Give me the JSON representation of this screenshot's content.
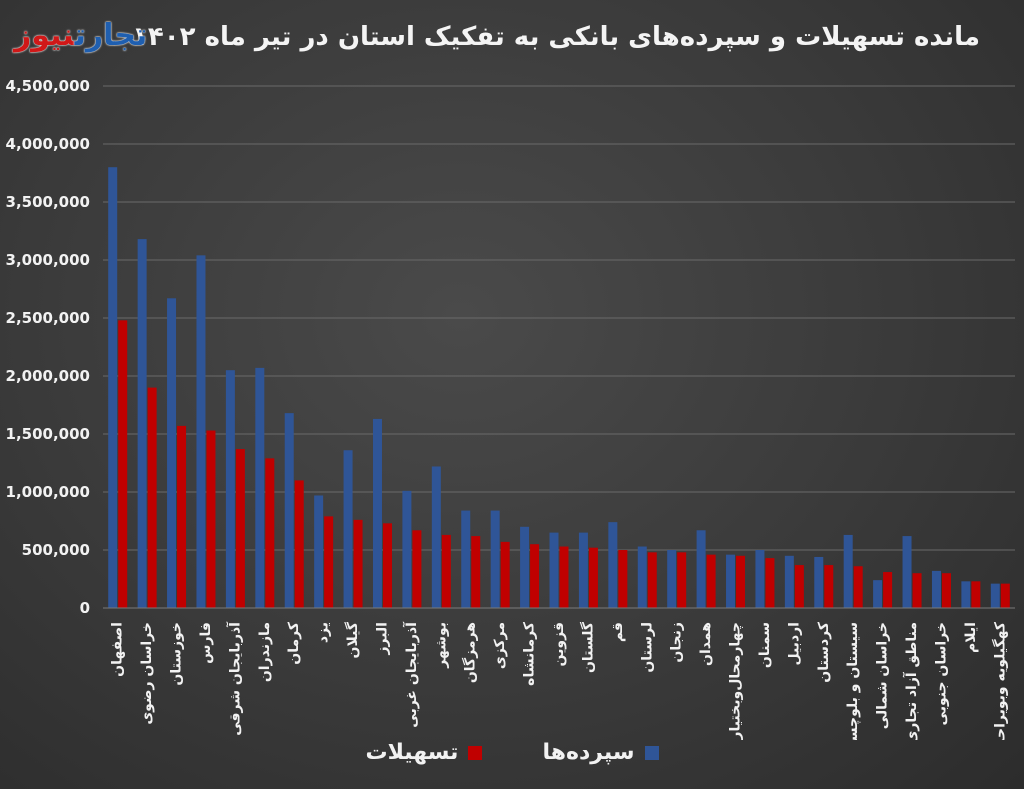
{
  "header": {
    "title": "مانده تسهیلات و سپرده‌های بانکی به تفکیک استان در تیر ماه ۱۴۰۲",
    "logo_part1": "تجارت",
    "logo_part2": "نیوز"
  },
  "chart_data": {
    "type": "bar",
    "categories": [
      "اصفهان",
      "خراسان رضوی",
      "خوزستان",
      "فارس",
      "آذربایجان شرقی",
      "مازندران",
      "کرمان",
      "یزد",
      "گیلان",
      "البرز",
      "آذربایجان غربی",
      "بوشهر",
      "هرمزگان",
      "مرکزی",
      "کرمانشاه",
      "قزوین",
      "گلستان",
      "قم",
      "لرستان",
      "زنجان",
      "همدان",
      "چهارمحال‌وبختیاری",
      "سمنان",
      "اردبیل",
      "کردستان",
      "سیستان و بلوچستان",
      "خراسان شمالی",
      "مناطق آزاد تجاری",
      "خراسان جنوبی",
      "ایلام",
      "کهگیلویه وبویراحمد"
    ],
    "series": [
      {
        "name": "سپرده‌ها",
        "color": "#2f5597",
        "values": [
          3800000,
          3180000,
          2670000,
          3040000,
          2050000,
          2070000,
          1680000,
          970000,
          1360000,
          1630000,
          1010000,
          1220000,
          840000,
          840000,
          700000,
          650000,
          650000,
          740000,
          530000,
          500000,
          670000,
          460000,
          500000,
          450000,
          440000,
          630000,
          240000,
          620000,
          320000,
          230000,
          210000
        ]
      },
      {
        "name": "تسهیلات",
        "color": "#c00000",
        "values": [
          2480000,
          1900000,
          1570000,
          1530000,
          1370000,
          1290000,
          1100000,
          790000,
          760000,
          730000,
          670000,
          630000,
          620000,
          570000,
          550000,
          530000,
          520000,
          500000,
          480000,
          480000,
          460000,
          450000,
          430000,
          370000,
          370000,
          360000,
          310000,
          300000,
          300000,
          230000,
          210000
        ]
      }
    ],
    "ylim": [
      0,
      4500000
    ],
    "yticks": [
      0,
      500000,
      1000000,
      1500000,
      2000000,
      2500000,
      3000000,
      3500000,
      4000000,
      4500000
    ],
    "ytick_labels": [
      "0",
      "500,000",
      "1,000,000",
      "1,500,000",
      "2,000,000",
      "2,500,000",
      "3,000,000",
      "3,500,000",
      "4,000,000",
      "4,500,000"
    ],
    "grid": true,
    "legend_position": "bottom"
  }
}
